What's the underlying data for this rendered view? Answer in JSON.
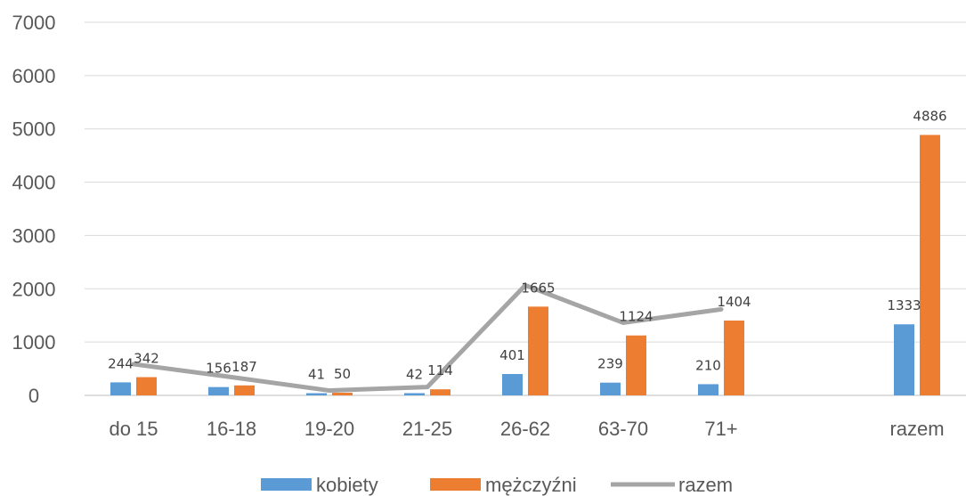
{
  "chart_data": {
    "type": "bar",
    "categories": [
      "do 15",
      "16-18",
      "19-20",
      "21-25",
      "26-62",
      "63-70",
      "71+",
      "",
      "razem"
    ],
    "series": [
      {
        "name": "kobiety",
        "type": "bar",
        "color": "#5B9BD5",
        "values": [
          244,
          156,
          41,
          42,
          401,
          239,
          210,
          null,
          1333
        ]
      },
      {
        "name": "mężczyźni",
        "type": "bar",
        "color": "#ED7D31",
        "values": [
          342,
          187,
          50,
          114,
          1665,
          1124,
          1404,
          null,
          4886
        ]
      },
      {
        "name": "razem",
        "type": "line",
        "color": "#A5A5A5",
        "values": [
          586,
          343,
          91,
          156,
          2066,
          1363,
          1614,
          null,
          null
        ]
      }
    ],
    "bar_labels": {
      "kobiety": [
        "244",
        "156",
        "41",
        "42",
        "401",
        "239",
        "210",
        "",
        "1333"
      ],
      "mężczyźni": [
        "342",
        "187",
        "50",
        "114",
        "1665",
        "1124",
        "1404",
        "",
        "4886"
      ]
    },
    "ylim": [
      0,
      7000
    ],
    "yticks": [
      "0",
      "1000",
      "2000",
      "3000",
      "4000",
      "5000",
      "6000",
      "7000"
    ],
    "grid": true,
    "legend": "bottom",
    "title": "",
    "xlabel": "",
    "ylabel": ""
  }
}
